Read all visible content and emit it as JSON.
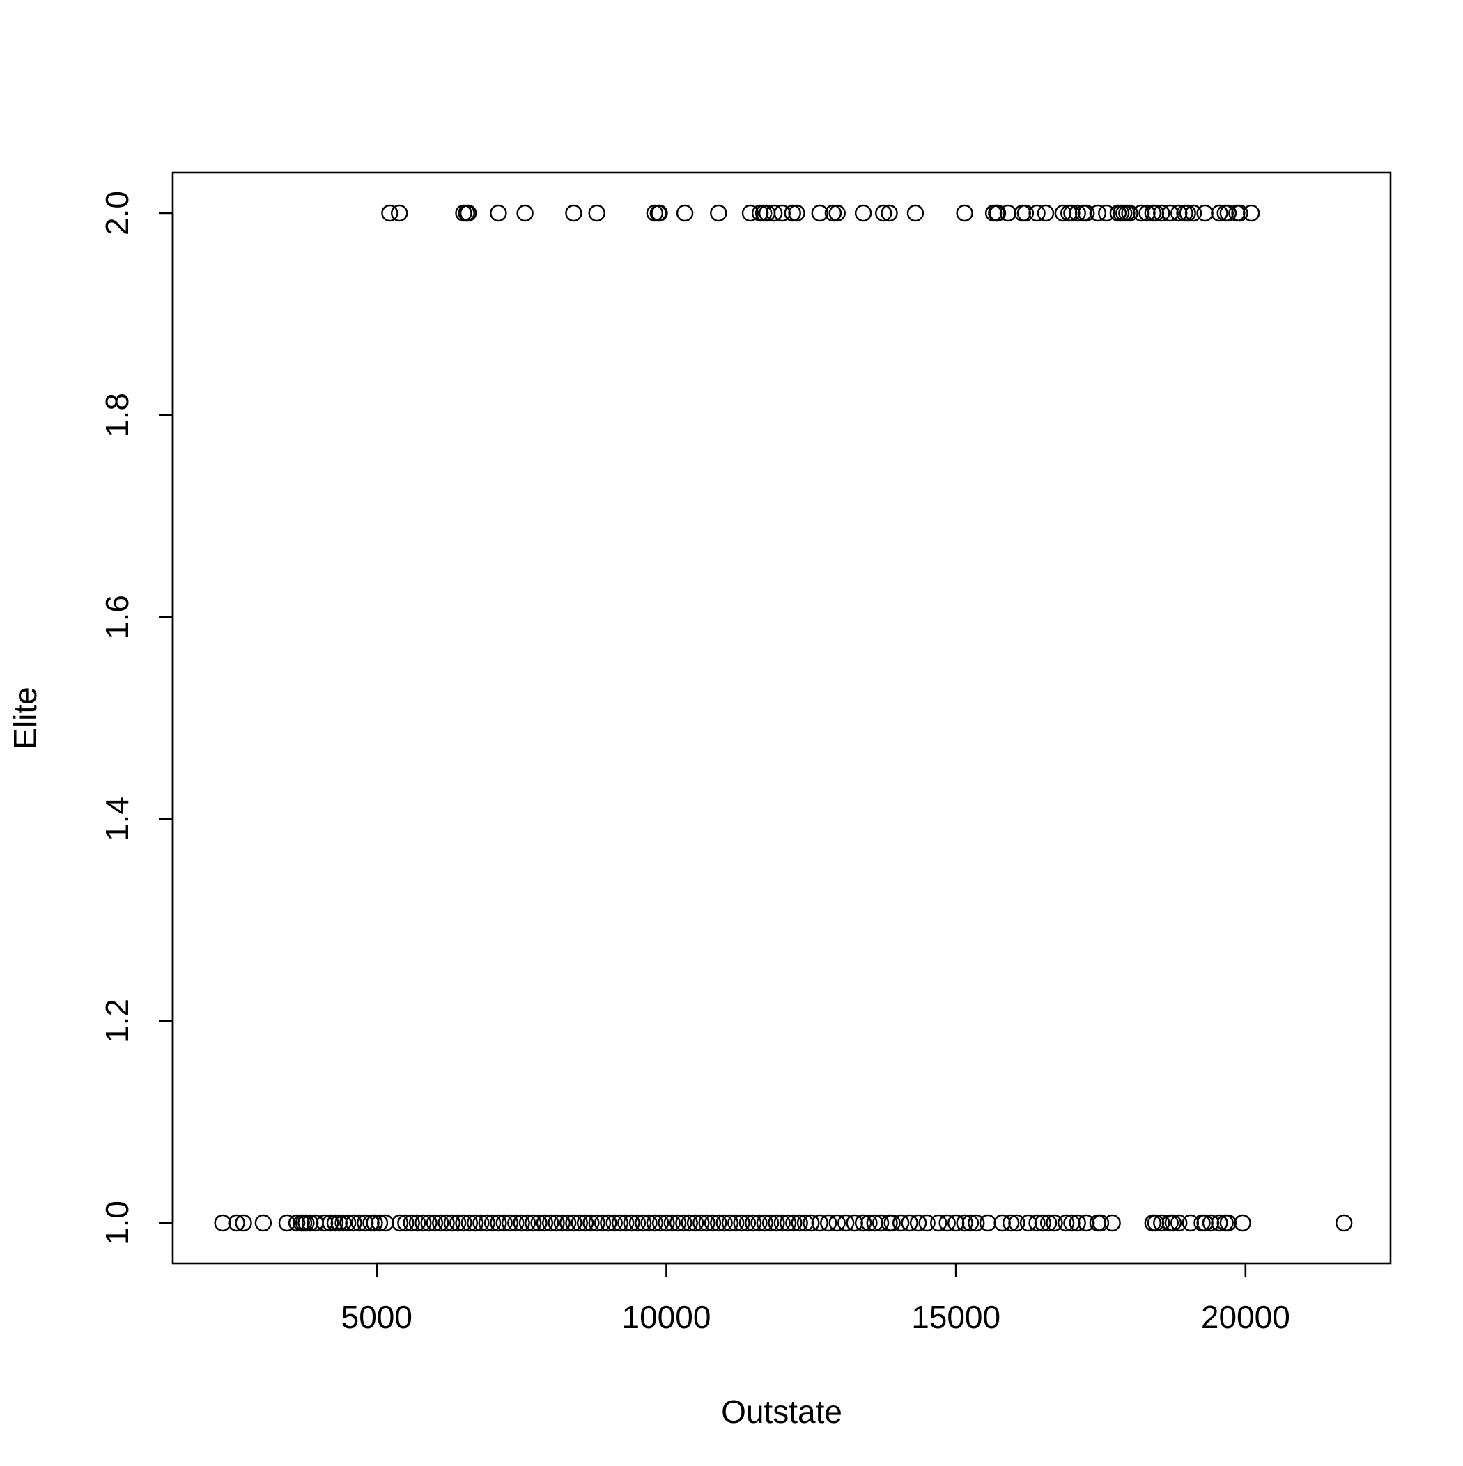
{
  "chart_data": {
    "type": "scatter",
    "title": "",
    "xlabel": "Outstate",
    "ylabel": "Elite",
    "xlim": [
      1478,
      22504
    ],
    "ylim": [
      0.96,
      2.04
    ],
    "x_ticks": [
      5000,
      10000,
      15000,
      20000
    ],
    "y_ticks": [
      1.0,
      1.2,
      1.4,
      1.6,
      1.8,
      2.0
    ],
    "x_tick_labels": [
      "5000",
      "10000",
      "15000",
      "20000"
    ],
    "y_tick_labels": [
      "1.0",
      "1.2",
      "1.4",
      "1.6",
      "1.8",
      "2.0"
    ],
    "grid": false,
    "legend": "none",
    "marker": "open-circle",
    "marker_color": "#000000",
    "series": [
      {
        "values_y": 2.0,
        "x": [
          5224,
          5390,
          6500,
          6550,
          6580,
          7100,
          7560,
          8400,
          8800,
          9800,
          9860,
          9880,
          10320,
          10900,
          11450,
          11620,
          11680,
          11740,
          11860,
          12000,
          12180,
          12250,
          12650,
          12880,
          12950,
          13400,
          13750,
          13850,
          14300,
          15150,
          15650,
          15700,
          15720,
          15900,
          16150,
          16200,
          16400,
          16550,
          16850,
          16950,
          17000,
          17100,
          17200,
          17250,
          17450,
          17600,
          17800,
          17850,
          17900,
          17950,
          18000,
          18200,
          18300,
          18400,
          18450,
          18550,
          18700,
          18850,
          18950,
          19000,
          19100,
          19300,
          19550,
          19650,
          19700,
          19850,
          19900,
          20100
        ]
      },
      {
        "values_y": 1.0,
        "x": [
          2340,
          2580,
          2700,
          3040,
          3450,
          3620,
          3700,
          3740,
          3780,
          3850,
          3940,
          4100,
          4200,
          4280,
          4350,
          4420,
          4500,
          4600,
          4700,
          4800,
          4900,
          4960,
          5050,
          5150,
          5400,
          5500,
          5600,
          5700,
          5800,
          5900,
          6000,
          6100,
          6200,
          6300,
          6400,
          6500,
          6600,
          6700,
          6800,
          6900,
          7000,
          7100,
          7200,
          7300,
          7400,
          7500,
          7600,
          7700,
          7800,
          7900,
          8000,
          8100,
          8200,
          8300,
          8400,
          8500,
          8600,
          8700,
          8800,
          8900,
          9000,
          9100,
          9200,
          9300,
          9400,
          9500,
          9600,
          9700,
          9800,
          9900,
          10000,
          10100,
          10200,
          10300,
          10400,
          10500,
          10600,
          10700,
          10800,
          10900,
          11000,
          11100,
          11200,
          11300,
          11400,
          11500,
          11600,
          11700,
          11800,
          11900,
          12000,
          12100,
          12200,
          12300,
          12400,
          12500,
          12650,
          12800,
          12950,
          13100,
          13250,
          13400,
          13500,
          13600,
          13700,
          13850,
          13900,
          14050,
          14200,
          14350,
          14500,
          14700,
          14850,
          15000,
          15150,
          15250,
          15350,
          15550,
          15800,
          15950,
          16050,
          16250,
          16400,
          16500,
          16600,
          16700,
          16900,
          17000,
          17100,
          17250,
          17450,
          17500,
          17700,
          18400,
          18450,
          18550,
          18700,
          18750,
          18850,
          19050,
          19250,
          19300,
          19400,
          19550,
          19650,
          19700,
          19950,
          21700
        ]
      }
    ]
  }
}
